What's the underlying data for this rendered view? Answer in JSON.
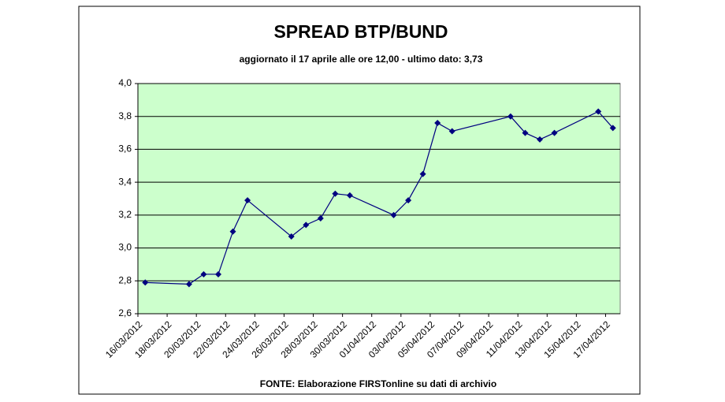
{
  "chart_data": {
    "type": "line",
    "title": "SPREAD BTP/BUND",
    "subtitle": "aggiornato il 17 aprile alle ore 12,00 - ultimo dato: 3,73",
    "source": "FONTE: Elaborazione FIRSTonline su dati di archivio",
    "x": [
      "16/03/2012",
      "19/03/2012",
      "20/03/2012",
      "21/03/2012",
      "22/03/2012",
      "23/03/2012",
      "26/03/2012",
      "27/03/2012",
      "28/03/2012",
      "29/03/2012",
      "30/03/2012",
      "02/04/2012",
      "03/04/2012",
      "04/04/2012",
      "05/04/2012",
      "06/04/2012",
      "10/04/2012",
      "11/04/2012",
      "12/04/2012",
      "13/04/2012",
      "16/04/2012",
      "17/04/2012"
    ],
    "series": [
      {
        "color": "#000080",
        "values": [
          2.79,
          2.78,
          2.84,
          2.84,
          3.1,
          3.29,
          3.07,
          3.14,
          3.18,
          3.33,
          3.32,
          3.2,
          3.29,
          3.45,
          3.76,
          3.71,
          3.8,
          3.7,
          3.66,
          3.7,
          3.83,
          3.73
        ]
      }
    ],
    "xticks": [
      "16/03/2012",
      "18/03/2012",
      "20/03/2012",
      "22/03/2012",
      "24/03/2012",
      "26/03/2012",
      "28/03/2012",
      "30/03/2012",
      "01/04/2012",
      "03/04/2012",
      "05/04/2012",
      "07/04/2012",
      "09/04/2012",
      "11/04/2012",
      "13/04/2012",
      "15/04/2012",
      "17/04/2012"
    ],
    "ylim": [
      2.6,
      4.0
    ],
    "yticks": [
      {
        "value": 2.6,
        "label": "2,6"
      },
      {
        "value": 2.8,
        "label": "2,8"
      },
      {
        "value": 3.0,
        "label": "3,0"
      },
      {
        "value": 3.2,
        "label": "3,2"
      },
      {
        "value": 3.4,
        "label": "3,4"
      },
      {
        "value": 3.6,
        "label": "3,6"
      },
      {
        "value": 3.8,
        "label": "3,8"
      },
      {
        "value": 4.0,
        "label": "4,0"
      }
    ],
    "grid": true,
    "plot_background": "#ccffcc"
  }
}
